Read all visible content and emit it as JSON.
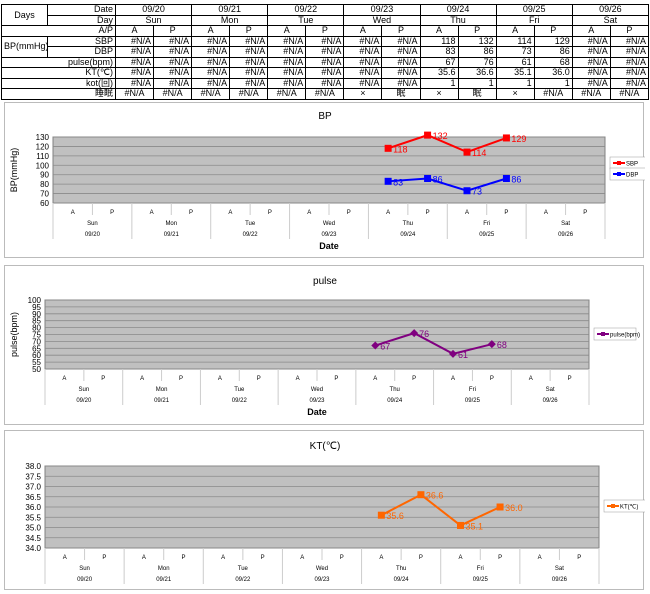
{
  "table": {
    "days_label": "Days",
    "date_label": "Date",
    "day_label": "Day",
    "ap_label": "A/P",
    "bp_label": "BP(mmHg)",
    "sbp_label": "SBP",
    "dbp_label": "DBP",
    "pulse_label": "pulse(bpm)",
    "kt_label": "KT(℃)",
    "kot_label": "kot(回)",
    "sleep_label": "睡眠",
    "dates": [
      "09/20",
      "09/21",
      "09/22",
      "09/23",
      "09/24",
      "09/25",
      "09/26"
    ],
    "days": [
      "Sun",
      "Mon",
      "Tue",
      "Wed",
      "Thu",
      "Fri",
      "Sat"
    ],
    "ap": [
      "A",
      "P",
      "A",
      "P",
      "A",
      "P",
      "A",
      "P",
      "A",
      "P",
      "A",
      "P",
      "A",
      "P"
    ],
    "sbp": [
      "#N/A",
      "#N/A",
      "#N/A",
      "#N/A",
      "#N/A",
      "#N/A",
      "#N/A",
      "#N/A",
      "118",
      "132",
      "114",
      "129",
      "#N/A",
      "#N/A"
    ],
    "dbp": [
      "#N/A",
      "#N/A",
      "#N/A",
      "#N/A",
      "#N/A",
      "#N/A",
      "#N/A",
      "#N/A",
      "83",
      "86",
      "73",
      "86",
      "#N/A",
      "#N/A"
    ],
    "pulse": [
      "#N/A",
      "#N/A",
      "#N/A",
      "#N/A",
      "#N/A",
      "#N/A",
      "#N/A",
      "#N/A",
      "67",
      "76",
      "61",
      "68",
      "#N/A",
      "#N/A"
    ],
    "kt": [
      "#N/A",
      "#N/A",
      "#N/A",
      "#N/A",
      "#N/A",
      "#N/A",
      "#N/A",
      "#N/A",
      "35.6",
      "36.6",
      "35.1",
      "36.0",
      "#N/A",
      "#N/A"
    ],
    "kot": [
      "#N/A",
      "#N/A",
      "#N/A",
      "#N/A",
      "#N/A",
      "#N/A",
      "#N/A",
      "#N/A",
      "1",
      "1",
      "1",
      "1",
      "#N/A",
      "#N/A"
    ],
    "sleep": [
      "#N/A",
      "#N/A",
      "#N/A",
      "#N/A",
      "#N/A",
      "#N/A",
      "×",
      "眠",
      "×",
      "眠",
      "×",
      "#N/A",
      "#N/A",
      "#N/A"
    ]
  },
  "chart_data": [
    {
      "type": "line",
      "title": "BP",
      "ylabel": "BP(mmHg)",
      "xlabel": "Date",
      "ylim": [
        60,
        130
      ],
      "ystep": 10,
      "ydecimals": 0,
      "x_ap": [
        "A",
        "P",
        "A",
        "P",
        "A",
        "P",
        "A",
        "P",
        "A",
        "P",
        "A",
        "P",
        "A",
        "P"
      ],
      "x_days": [
        "Sun",
        "Mon",
        "Tue",
        "Wed",
        "Thu",
        "Fri",
        "Sat"
      ],
      "x_dates": [
        "09/20",
        "09/21",
        "09/22",
        "09/23",
        "09/24",
        "09/25",
        "09/26"
      ],
      "legend": "right",
      "series": [
        {
          "name": "SBP",
          "color": "#ff0000",
          "marker": "square",
          "values": [
            null,
            null,
            null,
            null,
            null,
            null,
            null,
            null,
            118,
            132,
            114,
            129,
            null,
            null
          ],
          "labels": [
            "118",
            "132",
            "114",
            "129"
          ]
        },
        {
          "name": "DBP",
          "color": "#0000ff",
          "marker": "square",
          "values": [
            null,
            null,
            null,
            null,
            null,
            null,
            null,
            null,
            83,
            86,
            73,
            86,
            null,
            null
          ],
          "labels": [
            "83",
            "86",
            "73",
            "86"
          ]
        }
      ]
    },
    {
      "type": "line",
      "title": "pulse",
      "ylabel": "pulse(bpm)",
      "xlabel": "Date",
      "ylim": [
        50,
        100
      ],
      "ystep": 5,
      "ydecimals": 0,
      "x_ap": [
        "A",
        "P",
        "A",
        "P",
        "A",
        "P",
        "A",
        "P",
        "A",
        "P",
        "A",
        "P",
        "A",
        "P"
      ],
      "x_days": [
        "Sun",
        "Mon",
        "Tue",
        "Wed",
        "Thu",
        "Fri",
        "Sat"
      ],
      "x_dates": [
        "09/20",
        "09/21",
        "09/22",
        "09/23",
        "09/24",
        "09/25",
        "09/26"
      ],
      "legend": "right",
      "series": [
        {
          "name": "pulse(bpm)",
          "color": "#800080",
          "marker": "diamond",
          "values": [
            null,
            null,
            null,
            null,
            null,
            null,
            null,
            null,
            67,
            76,
            61,
            68,
            null,
            null
          ],
          "labels": [
            "67",
            "76",
            "61",
            "68"
          ]
        }
      ]
    },
    {
      "type": "line",
      "title": "KT(℃)",
      "ylabel": "",
      "xlabel": "",
      "ylim": [
        34,
        38
      ],
      "ystep": 0.5,
      "ydecimals": 1,
      "x_ap": [
        "A",
        "P",
        "A",
        "P",
        "A",
        "P",
        "A",
        "P",
        "A",
        "P",
        "A",
        "P",
        "A",
        "P"
      ],
      "x_days": [
        "Sun",
        "Mon",
        "Tue",
        "Wed",
        "Thu",
        "Fri",
        "Sat"
      ],
      "x_dates": [
        "09/20",
        "09/21",
        "09/22",
        "09/23",
        "09/24",
        "09/25",
        "09/26"
      ],
      "legend": "right",
      "series": [
        {
          "name": "KT(℃)",
          "color": "#ff6600",
          "marker": "square",
          "values": [
            null,
            null,
            null,
            null,
            null,
            null,
            null,
            null,
            35.6,
            36.6,
            35.1,
            36.0,
            null,
            null
          ],
          "labels": [
            "35.6",
            "36.6",
            "35.1",
            "36.0"
          ]
        }
      ]
    }
  ]
}
